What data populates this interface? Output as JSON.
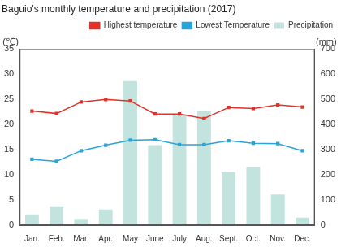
{
  "chart_data": {
    "type": "bar",
    "title": "Baguio's monthly temperature and precipitation (2017)",
    "y_label": "(℃)",
    "y2_label": "(mm)",
    "categories": [
      "Jan.",
      "Feb.",
      "Mar.",
      "Apr.",
      "May",
      "June",
      "July",
      "Aug.",
      "Sept.",
      "Oct.",
      "Nov.",
      "Dec."
    ],
    "series": [
      {
        "name": "Highest temperature",
        "type": "line",
        "color": "#e0322b",
        "marker": "square",
        "axis": "y",
        "values": [
          22.7,
          22.2,
          24.5,
          25.0,
          24.7,
          22.1,
          22.1,
          21.2,
          23.4,
          23.2,
          23.9,
          23.5
        ]
      },
      {
        "name": "Lowest Temperature",
        "type": "line",
        "color": "#2aa3d8",
        "marker": "square",
        "axis": "y",
        "values": [
          13.1,
          12.7,
          14.8,
          15.9,
          16.9,
          17.0,
          16.0,
          16.0,
          16.8,
          16.3,
          16.2,
          14.8
        ]
      },
      {
        "name": "Precipitation",
        "type": "bar",
        "color": "#c3e4de",
        "axis": "y2",
        "values": [
          43,
          75,
          25,
          62,
          573,
          318,
          440,
          453,
          210,
          233,
          122,
          30
        ]
      }
    ],
    "ylim": [
      0,
      35
    ],
    "yticks": [
      0,
      5,
      10,
      15,
      20,
      25,
      30,
      35
    ],
    "y2lim": [
      0,
      700
    ],
    "y2ticks": [
      0,
      100,
      200,
      300,
      400,
      500,
      600,
      700
    ],
    "grid": false,
    "legend": "top-right"
  }
}
